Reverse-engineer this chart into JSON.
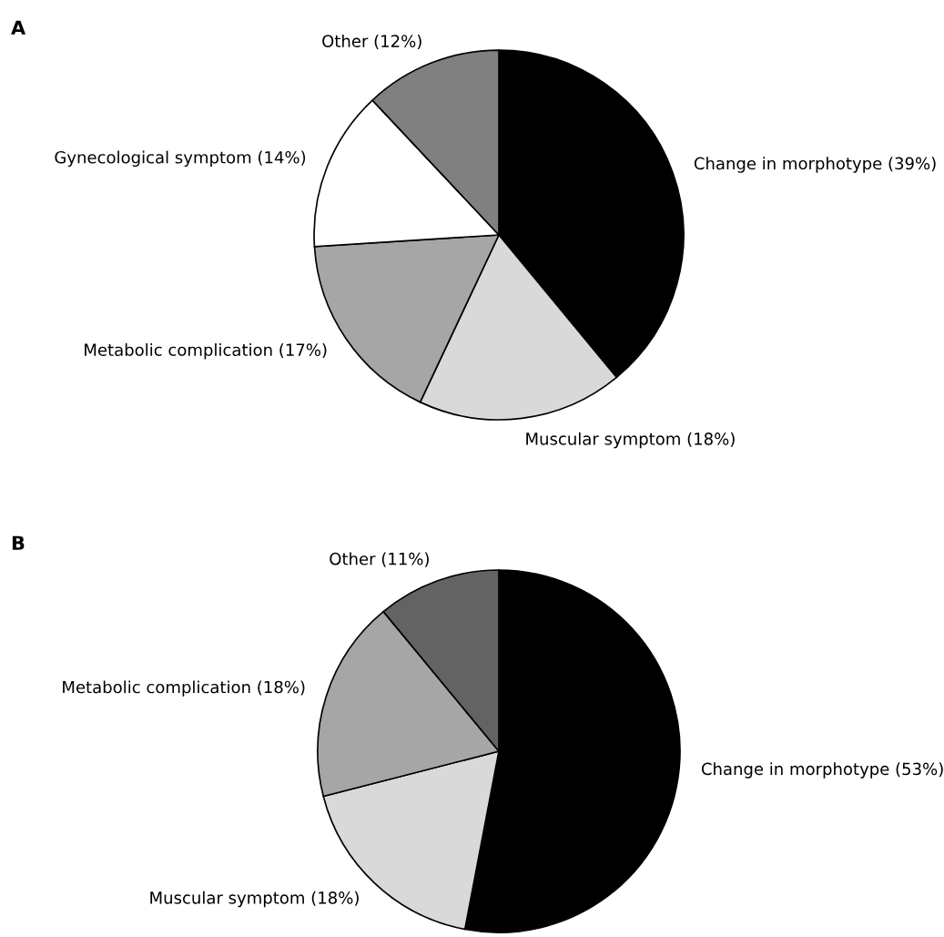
{
  "chart_data": [
    {
      "type": "pie",
      "title": "A",
      "categories": [
        "Change in morphotype (39%)",
        "Muscular symptom (18%)",
        "Metabolic complication (17%)",
        "Gynecological symptom (14%)",
        "Other (12%)"
      ],
      "values": [
        39,
        18,
        17,
        14,
        12
      ],
      "colors": [
        "#000000",
        "#d9d9d9",
        "#a6a6a6",
        "#ffffff",
        "#808080"
      ]
    },
    {
      "type": "pie",
      "title": "B",
      "categories": [
        "Change in morphotype (53%)",
        "Muscular symptom (18%)",
        "Metabolic complication (18%)",
        "Other (11%)"
      ],
      "values": [
        53,
        18,
        18,
        11
      ],
      "colors": [
        "#000000",
        "#d9d9d9",
        "#a6a6a6",
        "#636363"
      ]
    }
  ]
}
